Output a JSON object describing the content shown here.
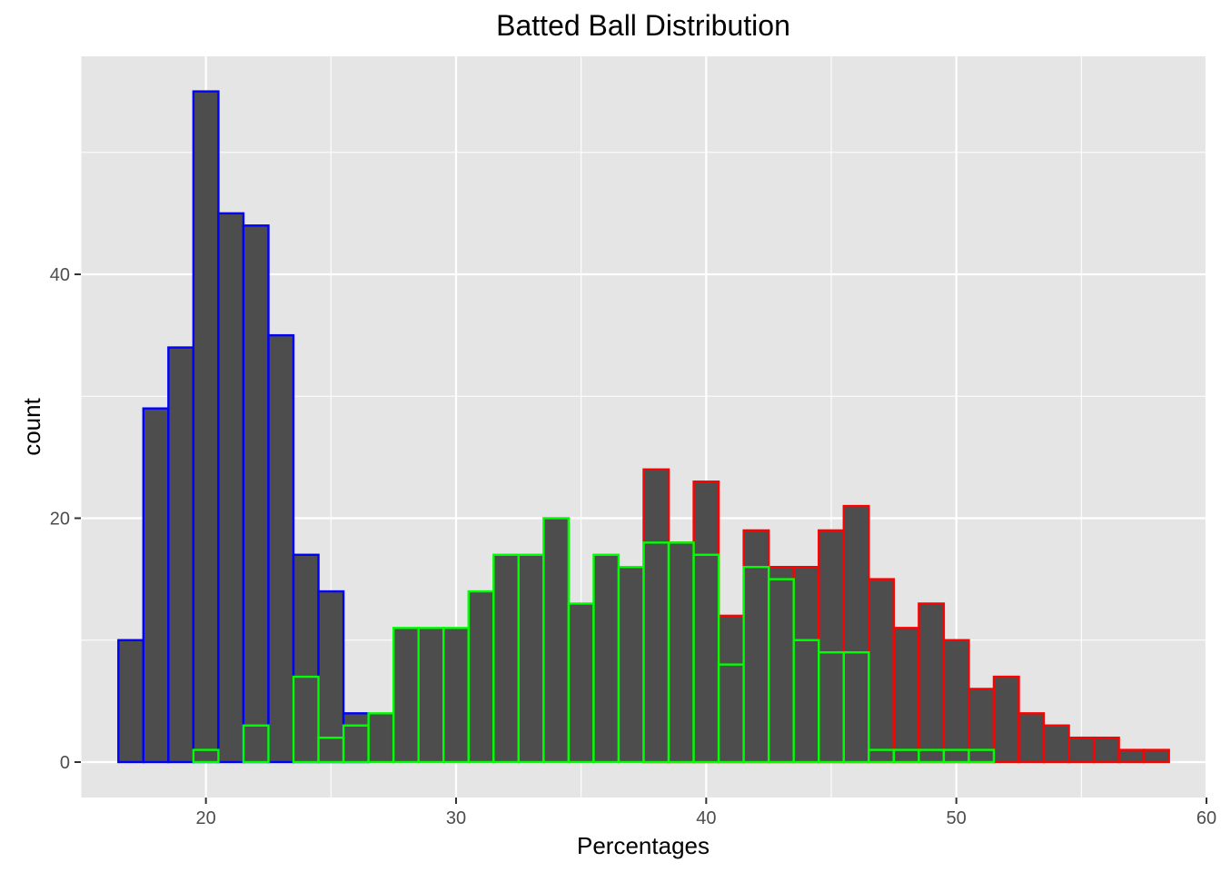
{
  "chart_data": {
    "type": "bar",
    "subtype": "overlaid-histogram",
    "title": "Batted Ball Distribution",
    "xlabel": "Percentages",
    "ylabel": "count",
    "xlim": [
      15,
      60
    ],
    "ylim": [
      0,
      55
    ],
    "x_ticks": [
      20,
      30,
      40,
      50,
      60
    ],
    "y_ticks": [
      0,
      20,
      40
    ],
    "grid": true,
    "legend": "none",
    "bin_width": 1,
    "bar_fill": "#4d4d4d",
    "panel_background": "#e5e5e5",
    "grid_color": "#ffffff",
    "series": [
      {
        "color": "#0000ff",
        "bins": [
          {
            "x": 17,
            "count": 10
          },
          {
            "x": 18,
            "count": 29
          },
          {
            "x": 19,
            "count": 34
          },
          {
            "x": 20,
            "count": 55
          },
          {
            "x": 21,
            "count": 45
          },
          {
            "x": 22,
            "count": 44
          },
          {
            "x": 23,
            "count": 35
          },
          {
            "x": 24,
            "count": 17
          },
          {
            "x": 25,
            "count": 14
          },
          {
            "x": 26,
            "count": 4
          }
        ]
      },
      {
        "color": "#ff0000",
        "bins": [
          {
            "x": 38,
            "count": 24
          },
          {
            "x": 39,
            "count": 18
          },
          {
            "x": 40,
            "count": 23
          },
          {
            "x": 41,
            "count": 12
          },
          {
            "x": 42,
            "count": 19
          },
          {
            "x": 43,
            "count": 16
          },
          {
            "x": 44,
            "count": 16
          },
          {
            "x": 45,
            "count": 19
          },
          {
            "x": 46,
            "count": 21
          },
          {
            "x": 47,
            "count": 15
          },
          {
            "x": 48,
            "count": 11
          },
          {
            "x": 49,
            "count": 13
          },
          {
            "x": 50,
            "count": 10
          },
          {
            "x": 51,
            "count": 6
          },
          {
            "x": 52,
            "count": 7
          },
          {
            "x": 53,
            "count": 4
          },
          {
            "x": 54,
            "count": 3
          },
          {
            "x": 55,
            "count": 2
          },
          {
            "x": 56,
            "count": 2
          },
          {
            "x": 57,
            "count": 1
          },
          {
            "x": 58,
            "count": 1
          }
        ]
      },
      {
        "color": "#00ff00",
        "bins": [
          {
            "x": 20,
            "count": 1
          },
          {
            "x": 22,
            "count": 3
          },
          {
            "x": 24,
            "count": 7
          },
          {
            "x": 25,
            "count": 2
          },
          {
            "x": 26,
            "count": 3
          },
          {
            "x": 27,
            "count": 4
          },
          {
            "x": 28,
            "count": 11
          },
          {
            "x": 29,
            "count": 11
          },
          {
            "x": 30,
            "count": 11
          },
          {
            "x": 31,
            "count": 14
          },
          {
            "x": 32,
            "count": 17
          },
          {
            "x": 33,
            "count": 17
          },
          {
            "x": 34,
            "count": 20
          },
          {
            "x": 35,
            "count": 13
          },
          {
            "x": 36,
            "count": 17
          },
          {
            "x": 37,
            "count": 16
          },
          {
            "x": 38,
            "count": 18
          },
          {
            "x": 39,
            "count": 18
          },
          {
            "x": 40,
            "count": 17
          },
          {
            "x": 41,
            "count": 8
          },
          {
            "x": 42,
            "count": 16
          },
          {
            "x": 43,
            "count": 15
          },
          {
            "x": 44,
            "count": 10
          },
          {
            "x": 45,
            "count": 9
          },
          {
            "x": 46,
            "count": 9
          },
          {
            "x": 47,
            "count": 1
          },
          {
            "x": 48,
            "count": 1
          },
          {
            "x": 49,
            "count": 1
          },
          {
            "x": 50,
            "count": 1
          },
          {
            "x": 51,
            "count": 1
          }
        ]
      }
    ]
  }
}
